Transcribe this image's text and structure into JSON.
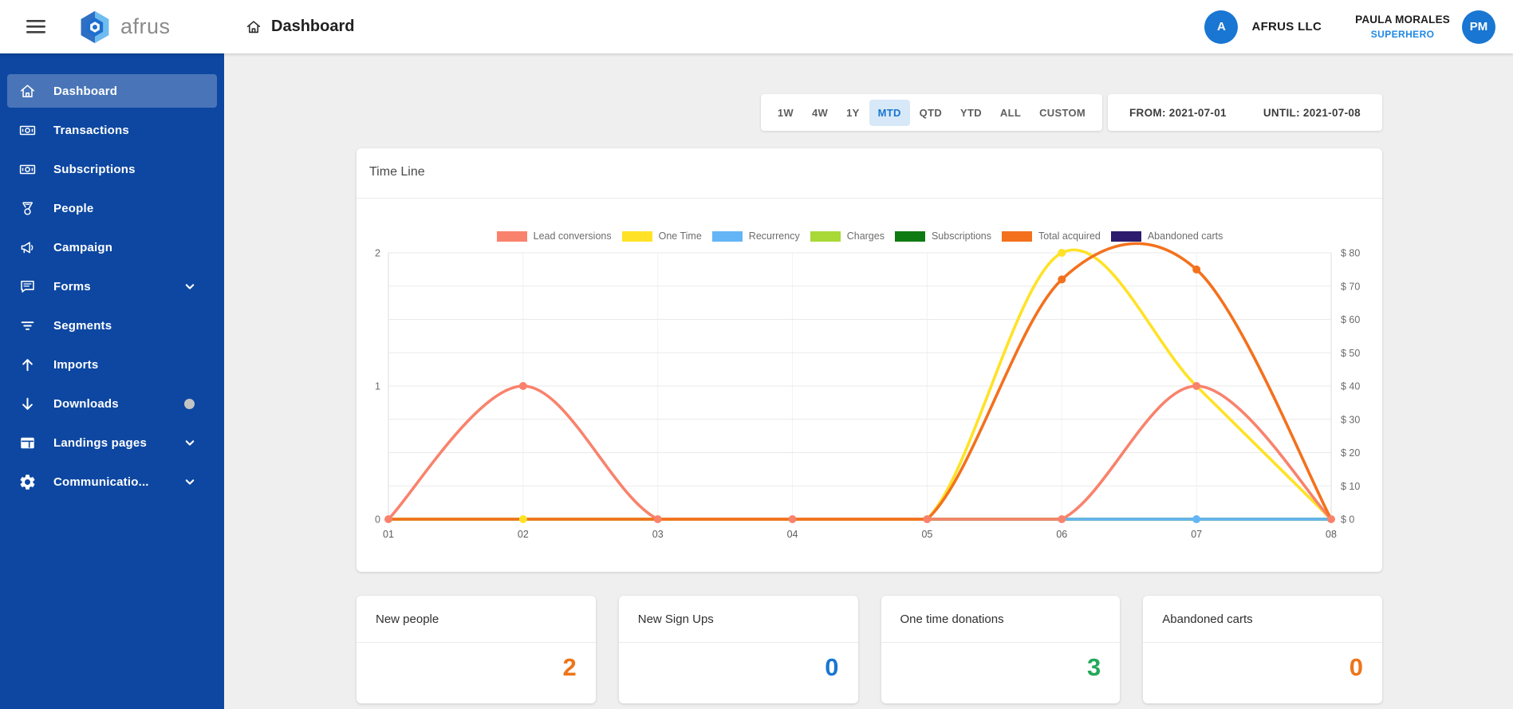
{
  "app": {
    "name": "afrus"
  },
  "header": {
    "title": "Dashboard",
    "org": {
      "initial": "A",
      "name": "AFRUS LLC"
    },
    "user": {
      "name": "PAULA MORALES",
      "role": "SUPERHERO",
      "initials": "PM"
    }
  },
  "sidebar": {
    "items": [
      {
        "label": "Dashboard",
        "icon": "home-icon",
        "active": true
      },
      {
        "label": "Transactions",
        "icon": "banknote-icon"
      },
      {
        "label": "Subscriptions",
        "icon": "banknote-icon"
      },
      {
        "label": "People",
        "icon": "medal-icon"
      },
      {
        "label": "Campaign",
        "icon": "megaphone-icon"
      },
      {
        "label": "Forms",
        "icon": "chat-icon",
        "chevron": true
      },
      {
        "label": "Segments",
        "icon": "filter-icon"
      },
      {
        "label": "Imports",
        "icon": "arrow-up-icon"
      },
      {
        "label": "Downloads",
        "icon": "arrow-down-icon",
        "badge": true
      },
      {
        "label": "Landings pages",
        "icon": "browser-icon",
        "chevron": true
      },
      {
        "label": "Communicatio...",
        "icon": "gear-icon",
        "chevron": true
      }
    ]
  },
  "filters": {
    "ranges": [
      "1W",
      "4W",
      "1Y",
      "MTD",
      "QTD",
      "YTD",
      "ALL",
      "CUSTOM"
    ],
    "selected": "MTD",
    "from_label": "FROM: 2021-07-01",
    "until_label": "UNTIL: 2021-07-08"
  },
  "chart_data": {
    "type": "line",
    "title": "Time Line",
    "x": [
      "01",
      "02",
      "03",
      "04",
      "05",
      "06",
      "07",
      "08"
    ],
    "left_axis": {
      "label_ticks": [
        "2",
        "1",
        "0"
      ],
      "range": [
        0,
        2
      ]
    },
    "right_axis": {
      "ticks": [
        "$ 80",
        "$ 70",
        "$ 60",
        "$ 50",
        "$ 40",
        "$ 30",
        "$ 20",
        "$ 10",
        "$ 0"
      ],
      "range": [
        0,
        80
      ]
    },
    "grid": true,
    "legend_position": "top",
    "series": [
      {
        "name": "Lead conversions",
        "color": "#F9826C",
        "axis": "left",
        "values": [
          0,
          1,
          0,
          0,
          0,
          0,
          1,
          0
        ]
      },
      {
        "name": "One Time",
        "color": "#FFE226",
        "axis": "right",
        "values": [
          0,
          0,
          0,
          0,
          0,
          80,
          40,
          0
        ]
      },
      {
        "name": "Recurrency",
        "color": "#64B5F6",
        "axis": "right",
        "values": [
          null,
          null,
          null,
          null,
          null,
          0,
          0,
          0
        ]
      },
      {
        "name": "Charges",
        "color": "#A8D937",
        "axis": "right",
        "values": [
          0,
          0,
          0,
          0,
          0,
          0,
          0,
          0
        ]
      },
      {
        "name": "Subscriptions",
        "color": "#0E7A12",
        "axis": "left",
        "values": [
          0,
          0,
          0,
          0,
          0,
          0,
          0,
          0
        ]
      },
      {
        "name": "Total acquired",
        "color": "#F3711D",
        "axis": "right",
        "values": [
          0,
          0,
          0,
          0,
          0,
          72,
          75,
          0
        ]
      },
      {
        "name": "Abandoned carts",
        "color": "#2D1B6E",
        "axis": "left",
        "values": [
          0,
          0,
          0,
          0,
          0,
          0,
          0,
          0
        ]
      }
    ]
  },
  "cards": [
    {
      "title": "New people",
      "value": "2",
      "color": "#EE7418"
    },
    {
      "title": "New Sign Ups",
      "value": "0",
      "color": "#1976D2"
    },
    {
      "title": "One time donations",
      "value": "3",
      "color": "#22A95A"
    },
    {
      "title": "Abandoned carts",
      "value": "0",
      "color": "#EE7418"
    }
  ],
  "colors": {
    "sidebar_bg": "#0D47A1",
    "accent_blue": "#1976D2",
    "main_bg": "#EFEFEF"
  }
}
